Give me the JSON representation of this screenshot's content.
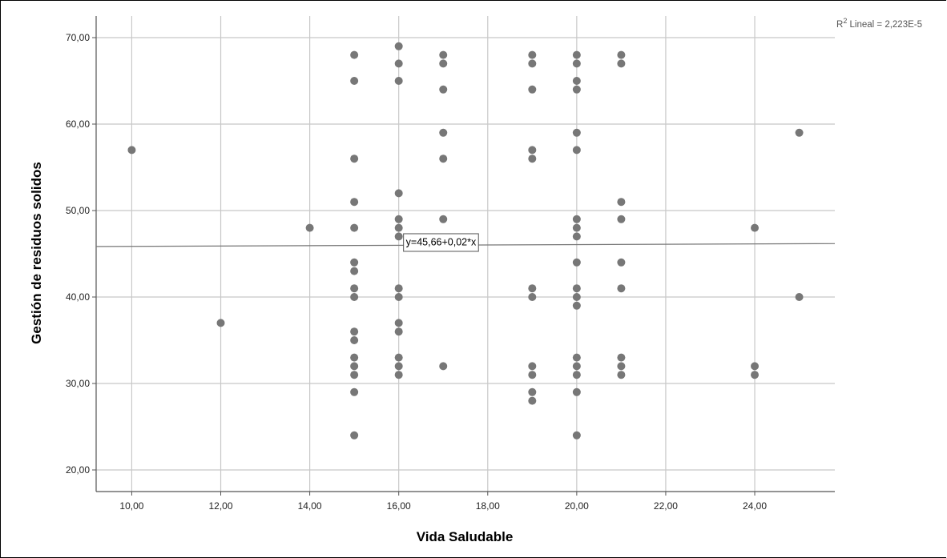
{
  "chart_data": {
    "type": "scatter",
    "title": "",
    "xlabel": "Vida Saludable",
    "ylabel": "Gestión de residuos solidos",
    "xlim": [
      9.2,
      25.8
    ],
    "ylim": [
      17.5,
      72.5
    ],
    "xticks": [
      "10,00",
      "12,00",
      "14,00",
      "16,00",
      "18,00",
      "20,00",
      "22,00",
      "24,00"
    ],
    "xtick_values": [
      10,
      12,
      14,
      16,
      18,
      20,
      22,
      24
    ],
    "yticks": [
      "20,00",
      "30,00",
      "40,00",
      "50,00",
      "60,00",
      "70,00"
    ],
    "ytick_values": [
      20,
      30,
      40,
      50,
      60,
      70
    ],
    "grid": true,
    "point_color": "#777777",
    "fit_line": {
      "intercept": 45.66,
      "slope": 0.02,
      "label": "y=45,66+0,02*x",
      "label_x": 16.95,
      "label_y": 46.3,
      "color": "#777777"
    },
    "r2_label_prefix": "R",
    "r2_label_sup": "2",
    "r2_label_rest": " Lineal = 2,223E-5",
    "points": [
      [
        10,
        57
      ],
      [
        12,
        37
      ],
      [
        14,
        48
      ],
      [
        15,
        68
      ],
      [
        15,
        65
      ],
      [
        15,
        56
      ],
      [
        15,
        51
      ],
      [
        15,
        48
      ],
      [
        15,
        44
      ],
      [
        15,
        43
      ],
      [
        15,
        41
      ],
      [
        15,
        40
      ],
      [
        15,
        36
      ],
      [
        15,
        35
      ],
      [
        15,
        33
      ],
      [
        15,
        32
      ],
      [
        15,
        31
      ],
      [
        15,
        29
      ],
      [
        15,
        24
      ],
      [
        16,
        69
      ],
      [
        16,
        67
      ],
      [
        16,
        65
      ],
      [
        16,
        52
      ],
      [
        16,
        49
      ],
      [
        16,
        48
      ],
      [
        16,
        47
      ],
      [
        16,
        41
      ],
      [
        16,
        40
      ],
      [
        16,
        37
      ],
      [
        16,
        36
      ],
      [
        16,
        33
      ],
      [
        16,
        32
      ],
      [
        16,
        31
      ],
      [
        17,
        68
      ],
      [
        17,
        67
      ],
      [
        17,
        64
      ],
      [
        17,
        59
      ],
      [
        17,
        56
      ],
      [
        17,
        49
      ],
      [
        17,
        32
      ],
      [
        19,
        68
      ],
      [
        19,
        67
      ],
      [
        19,
        64
      ],
      [
        19,
        57
      ],
      [
        19,
        56
      ],
      [
        19,
        41
      ],
      [
        19,
        40
      ],
      [
        19,
        32
      ],
      [
        19,
        31
      ],
      [
        19,
        29
      ],
      [
        19,
        28
      ],
      [
        20,
        68
      ],
      [
        20,
        67
      ],
      [
        20,
        65
      ],
      [
        20,
        64
      ],
      [
        20,
        59
      ],
      [
        20,
        57
      ],
      [
        20,
        49
      ],
      [
        20,
        48
      ],
      [
        20,
        47
      ],
      [
        20,
        44
      ],
      [
        20,
        41
      ],
      [
        20,
        40
      ],
      [
        20,
        39
      ],
      [
        20,
        33
      ],
      [
        20,
        32
      ],
      [
        20,
        31
      ],
      [
        20,
        29
      ],
      [
        20,
        24
      ],
      [
        21,
        68
      ],
      [
        21,
        67
      ],
      [
        21,
        51
      ],
      [
        21,
        49
      ],
      [
        21,
        44
      ],
      [
        21,
        41
      ],
      [
        21,
        33
      ],
      [
        21,
        32
      ],
      [
        21,
        31
      ],
      [
        24,
        48
      ],
      [
        24,
        32
      ],
      [
        24,
        31
      ],
      [
        25,
        59
      ],
      [
        25,
        40
      ]
    ]
  }
}
